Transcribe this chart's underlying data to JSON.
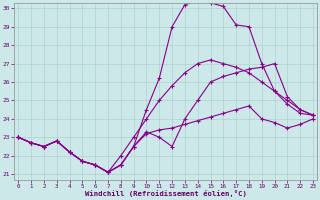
{
  "xlabel": "Windchill (Refroidissement éolien,°C)",
  "xlim": [
    0,
    23
  ],
  "ylim": [
    21,
    30
  ],
  "yticks": [
    21,
    22,
    23,
    24,
    25,
    26,
    27,
    28,
    29,
    30
  ],
  "xticks": [
    0,
    1,
    2,
    3,
    4,
    5,
    6,
    7,
    8,
    9,
    10,
    11,
    12,
    13,
    14,
    15,
    16,
    17,
    18,
    19,
    20,
    21,
    22,
    23
  ],
  "background_color": "#cce8e8",
  "grid_color": "#b0d0d0",
  "line_color": "#880088",
  "lines": [
    [
      23.0,
      22.7,
      22.5,
      22.8,
      22.2,
      21.7,
      21.5,
      21.1,
      21.5,
      22.5,
      23.3,
      23.0,
      22.5,
      24.0,
      25.0,
      26.0,
      26.3,
      26.5,
      26.7,
      26.8,
      27.0,
      25.2,
      24.5,
      24.2
    ],
    [
      23.0,
      22.7,
      22.5,
      22.8,
      22.2,
      21.7,
      21.5,
      21.1,
      21.5,
      22.5,
      24.5,
      26.2,
      29.0,
      30.2,
      30.4,
      30.3,
      30.1,
      29.1,
      29.0,
      27.0,
      25.5,
      24.8,
      24.3,
      24.2
    ],
    [
      23.0,
      22.7,
      22.5,
      22.8,
      22.2,
      21.7,
      21.5,
      21.1,
      22.0,
      23.0,
      24.0,
      25.0,
      25.8,
      26.5,
      27.0,
      27.2,
      27.0,
      26.8,
      26.5,
      26.0,
      25.5,
      25.0,
      24.5,
      24.2
    ],
    [
      23.0,
      22.7,
      22.5,
      22.8,
      22.2,
      21.7,
      21.5,
      21.1,
      21.5,
      22.5,
      23.2,
      23.4,
      23.5,
      23.7,
      23.9,
      24.1,
      24.3,
      24.5,
      24.7,
      24.0,
      23.8,
      23.5,
      23.7,
      24.0
    ]
  ]
}
